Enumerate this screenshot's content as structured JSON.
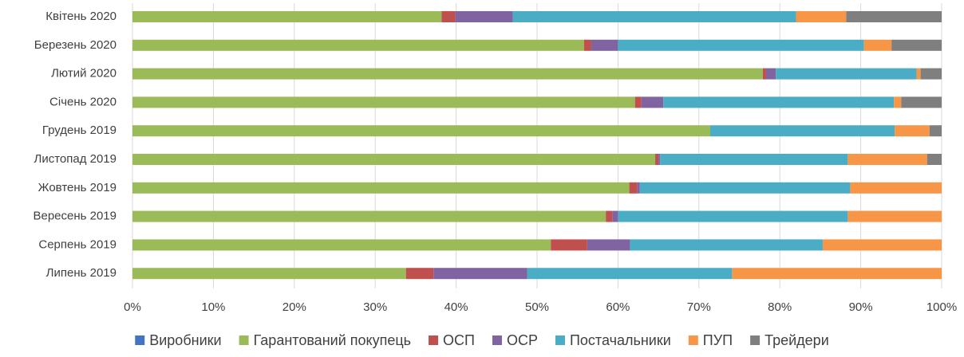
{
  "chart_data": {
    "type": "stacked_bar_horizontal",
    "categories": [
      "Квітень 2020",
      "Березень 2020",
      "Лютий 2020",
      "Січень 2020",
      "Грудень 2019",
      "Листопад 2019",
      "Жовтень 2019",
      "Вересень 2019",
      "Серпень 2019",
      "Липень 2019"
    ],
    "series": [
      {
        "name": "Виробники",
        "color": "#4472c4",
        "values": [
          0,
          0,
          0,
          0,
          0,
          0,
          0,
          0,
          0,
          0
        ]
      },
      {
        "name": "Гарантований покупець",
        "color": "#9bbb59",
        "values": [
          38.2,
          55.8,
          77.9,
          62.1,
          71.4,
          64.6,
          61.4,
          58.5,
          51.7,
          33.8
        ]
      },
      {
        "name": "ОСП",
        "color": "#c0504d",
        "values": [
          1.7,
          0.9,
          0.4,
          0.8,
          0,
          0.4,
          1.0,
          0.8,
          4.5,
          3.4
        ]
      },
      {
        "name": "ОСР",
        "color": "#8064a2",
        "values": [
          7.1,
          3.3,
          1.2,
          2.7,
          0,
          0.2,
          0.3,
          0.7,
          5.3,
          11.6
        ]
      },
      {
        "name": "Постачальники",
        "color": "#4bacc6",
        "values": [
          35.0,
          30.4,
          17.4,
          28.5,
          22.8,
          23.2,
          26.0,
          28.4,
          23.8,
          25.3
        ]
      },
      {
        "name": "ПУП",
        "color": "#f79646",
        "values": [
          6.2,
          3.4,
          0.5,
          0.9,
          4.3,
          9.8,
          11.3,
          11.6,
          14.7,
          25.9
        ]
      },
      {
        "name": "Трейдери",
        "color": "#7f7f7f",
        "values": [
          11.8,
          6.2,
          2.6,
          5.0,
          1.5,
          1.8,
          0,
          0,
          0,
          0
        ]
      }
    ],
    "xlim": [
      0,
      100
    ],
    "xticks": [
      {
        "value": 0,
        "label": "0%"
      },
      {
        "value": 10,
        "label": "10%"
      },
      {
        "value": 20,
        "label": "20%"
      },
      {
        "value": 30,
        "label": "30%"
      },
      {
        "value": 40,
        "label": "40%"
      },
      {
        "value": 50,
        "label": "50%"
      },
      {
        "value": 60,
        "label": "60%"
      },
      {
        "value": 70,
        "label": "70%"
      },
      {
        "value": 80,
        "label": "80%"
      },
      {
        "value": 90,
        "label": "90%"
      },
      {
        "value": 100,
        "label": "100%"
      }
    ],
    "grid": true,
    "legend": "bottom"
  }
}
